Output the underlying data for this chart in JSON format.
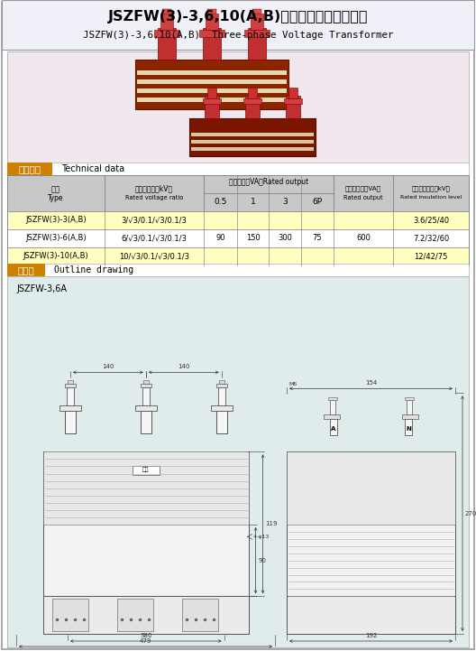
{
  "title_cn": "JSZFW(3)-3,6,10(A,B)型系列三相电压互感器",
  "title_en": "JSZFW(3)-3,6,10(A,B)  Three-phase Voltage Transformer",
  "section1_cn": "技术参数",
  "section1_en": "Technical data",
  "col_headers_cn": [
    "型号",
    "额定电压比（kV）",
    "额定输出（VA）Rated output",
    "",
    "",
    "",
    "热稳限输出（VA）",
    "额定绝缘水平（kV）"
  ],
  "col_headers_en": [
    "Type",
    "Rated voltage ratio",
    "",
    "",
    "",
    "",
    "Rated output",
    "Rated insulation level"
  ],
  "subheaders": [
    "0.5",
    "1",
    "3",
    "6P"
  ],
  "rows": [
    [
      "JSZFW(3)-3(A,B)",
      "3/√3/0.1/√3/0.1/3",
      "",
      "",
      "",
      "",
      "",
      "3.6/25/40"
    ],
    [
      "JSZFW(3)-6(A,B)",
      "6/√3/0.1/√3/0.1/3",
      "90",
      "150",
      "300",
      "75",
      "600",
      "7.2/32/60"
    ],
    [
      "JSZFW(3)-10(A,B)",
      "10/√3/0.1/√3/0.1/3",
      "",
      "",
      "",
      "",
      "",
      "12/42/75"
    ]
  ],
  "section2_cn": "外形图",
  "section2_en": "Outline drawing",
  "drawing_label": "JSZFW-3,6A",
  "bg_color": "#ffffff",
  "table_header_bg": "#c8c8c8",
  "row_bg_odd": "#ffffc0",
  "row_bg_even": "#ffffff",
  "section_label_bg": "#d08000",
  "photo_bg": "#f0e8ee",
  "outline_bg": "#e0ecec",
  "title_bg": "#f0f0f8"
}
